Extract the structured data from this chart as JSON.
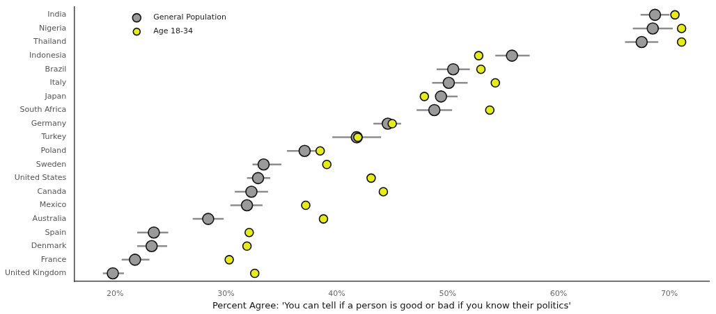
{
  "chart_data": {
    "type": "scatter",
    "orientation": "horizontal",
    "xlabel": "Percent Agree: 'You can tell if a person is good or bad if you know their politics'",
    "categories": [
      "India",
      "Nigeria",
      "Thailand",
      "Indonesia",
      "Brazil",
      "Italy",
      "Japan",
      "South Africa",
      "Germany",
      "Turkey",
      "Poland",
      "Sweden",
      "United States",
      "Canada",
      "Mexico",
      "Australia",
      "Spain",
      "Denmark",
      "France",
      "United Kingdom"
    ],
    "series": [
      {
        "name": "General Population",
        "color": "#9a9a9a",
        "values": [
          68.7,
          68.5,
          67.5,
          55.8,
          50.5,
          50.1,
          49.4,
          48.8,
          44.6,
          41.8,
          37.1,
          33.4,
          32.9,
          32.3,
          31.9,
          28.4,
          23.5,
          23.3,
          21.8,
          19.8
        ],
        "errors": [
          [
            67.4,
            70.0
          ],
          [
            66.7,
            70.3
          ],
          [
            66.0,
            69.0
          ],
          [
            54.3,
            57.4
          ],
          [
            49.0,
            52.0
          ],
          [
            48.6,
            51.8
          ],
          [
            49.4,
            50.9
          ],
          [
            47.2,
            50.4
          ],
          [
            43.3,
            45.8
          ],
          [
            39.6,
            44.0
          ],
          [
            35.5,
            38.4
          ],
          [
            32.4,
            35.0
          ],
          [
            31.9,
            34.0
          ],
          [
            30.8,
            33.8
          ],
          [
            30.4,
            33.3
          ],
          [
            27.0,
            29.8
          ],
          [
            22.0,
            24.8
          ],
          [
            22.0,
            24.7
          ],
          [
            20.6,
            23.1
          ],
          [
            18.9,
            20.8
          ]
        ]
      },
      {
        "name": "Age 18-34",
        "color": "#e6ec1a",
        "values": [
          70.5,
          71.1,
          71.1,
          52.8,
          53.0,
          54.3,
          47.9,
          53.8,
          45.0,
          41.9,
          38.5,
          39.1,
          43.1,
          44.2,
          37.2,
          38.8,
          32.1,
          31.9,
          30.3,
          32.6
        ]
      }
    ],
    "xlim": [
      16.3,
      73.6
    ],
    "xticks": [
      {
        "value": 20,
        "label": "20%"
      },
      {
        "value": 30,
        "label": "30%"
      },
      {
        "value": 40,
        "label": "40%"
      },
      {
        "value": 50,
        "label": "50%"
      },
      {
        "value": 60,
        "label": "60%"
      },
      {
        "value": 70,
        "label": "70%"
      }
    ],
    "grid": false,
    "legend": "top left",
    "marker": "circle"
  }
}
